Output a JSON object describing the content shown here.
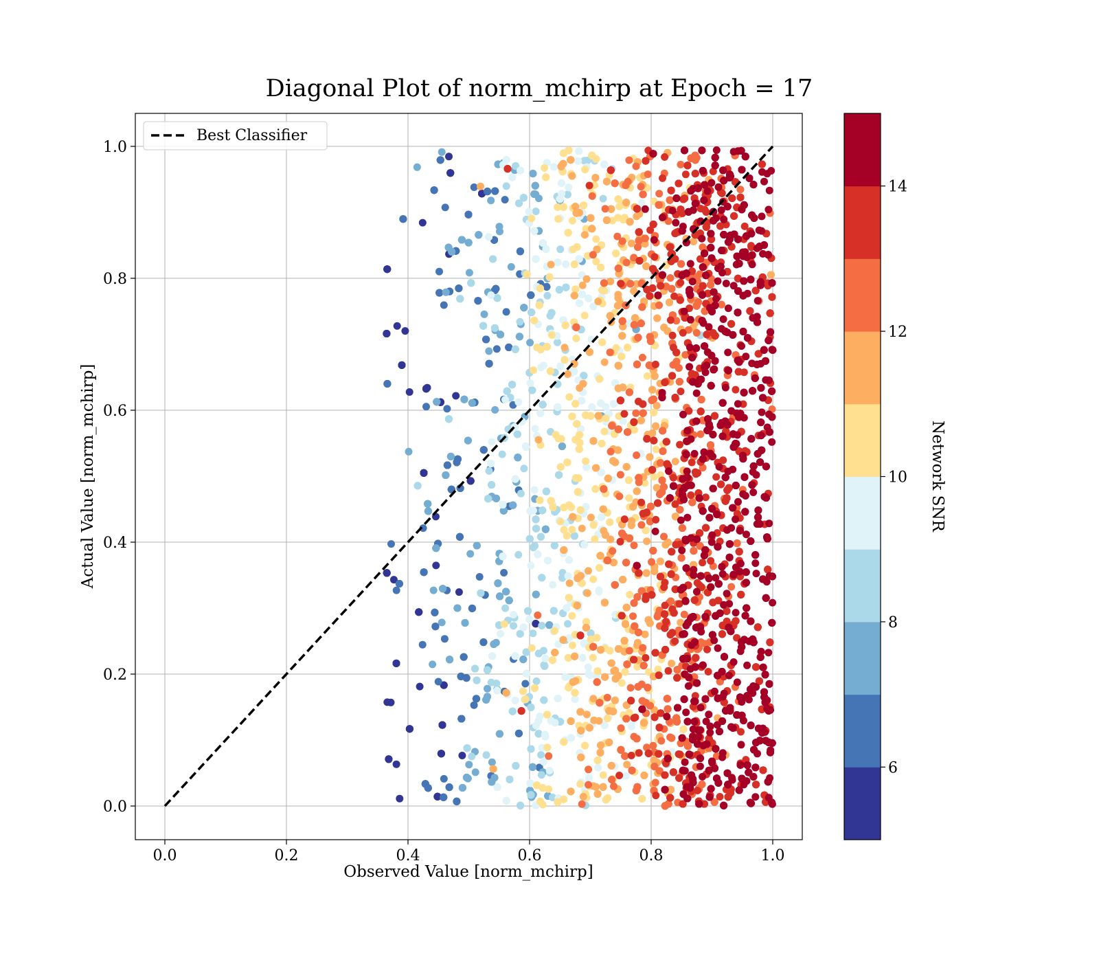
{
  "chart_data": {
    "type": "scatter",
    "title": "Diagonal Plot of norm_mchirp at Epoch = 17",
    "xlabel": "Observed Value [norm_mchirp]",
    "ylabel": "Actual Value [norm_mchirp]",
    "xlim": [
      -0.05,
      1.05
    ],
    "ylim": [
      -0.05,
      1.05
    ],
    "xticks": [
      "0.0",
      "0.2",
      "0.4",
      "0.6",
      "0.8",
      "1.0"
    ],
    "yticks": [
      "0.0",
      "0.2",
      "0.4",
      "0.6",
      "0.8",
      "1.0"
    ],
    "grid": true,
    "legend": {
      "position": "top-left",
      "entries": [
        "Best Classifier"
      ]
    },
    "reference_line": {
      "name": "Best Classifier",
      "x": [
        0.0,
        1.0
      ],
      "y": [
        0.0,
        1.0
      ],
      "style": "dashed",
      "color": "#000000"
    },
    "scatter_description": {
      "x_range": [
        0.35,
        1.0
      ],
      "y_range": [
        0.0,
        1.0
      ],
      "color_by": "Network SNR",
      "trend": "higher Network SNR points concentrate at larger observed values; observed value near 0.4 for low SNR, near 1.0 for high SNR"
    },
    "colorbar": {
      "label": "Network SNR",
      "range": [
        5,
        15
      ],
      "ticks": [
        "6",
        "8",
        "10",
        "12",
        "14"
      ],
      "tick_values": [
        6,
        8,
        10,
        12,
        14
      ],
      "levels": 10,
      "colors": [
        "#313695",
        "#4575b4",
        "#74add1",
        "#abd9e9",
        "#e0f3f8",
        "#fee090",
        "#fdae61",
        "#f46d43",
        "#d73027",
        "#a50026"
      ]
    }
  }
}
